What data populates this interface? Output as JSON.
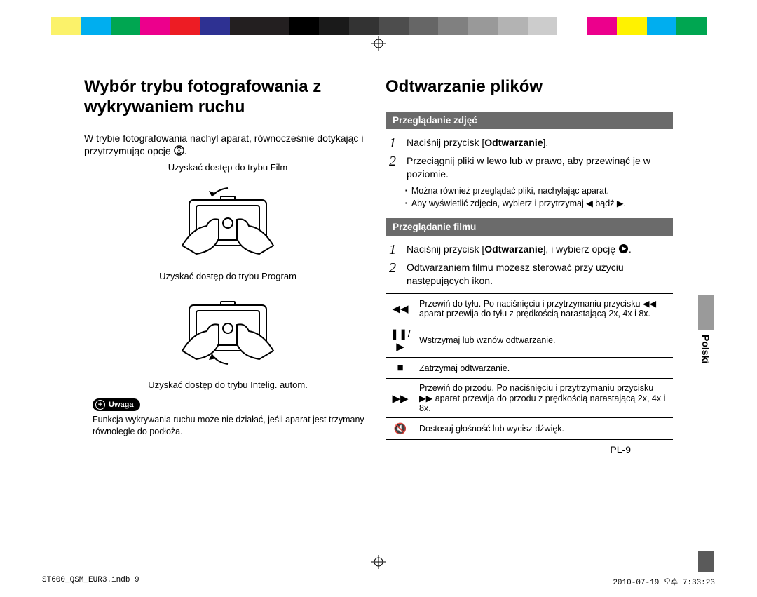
{
  "colorBar": [
    "#ffffff",
    "#fbf26a",
    "#00aeef",
    "#00a651",
    "#ec008c",
    "#ed1c24",
    "#2e3192",
    "#231f20",
    "#231f20",
    "#000000",
    "#1a1a1a",
    "#333333",
    "#4d4d4d",
    "#666666",
    "#808080",
    "#999999",
    "#b3b3b3",
    "#cccccc",
    "#ffffff",
    "#ec008c",
    "#fff200",
    "#00aeef",
    "#00a651",
    "#ffffff"
  ],
  "left": {
    "heading": "Wybór trybu fotografowania z wykrywaniem ruchu",
    "intro_a": "W trybie fotografowania nachyl aparat, równocześnie dotykając i przytrzymując opcję ",
    "intro_b": ".",
    "cap1": "Uzyskać dostęp do trybu Film",
    "cap2": "Uzyskać dostęp do trybu Program",
    "cap3": "Uzyskać dostęp do trybu Intelig. autom.",
    "noteLabel": "Uwaga",
    "noteText": "Funkcja wykrywania ruchu może nie działać, jeśli aparat jest trzymany równolegle do podłoża."
  },
  "right": {
    "heading": "Odtwarzanie plików",
    "sec1": "Przeglądanie zdjęć",
    "s1_1_a": "Naciśnij przycisk [",
    "s1_1_b": "Odtwarzanie",
    "s1_1_c": "].",
    "s1_2": "Przeciągnij pliki w lewo lub w prawo, aby przewinąć je w poziomie.",
    "b1": "Można również przeglądać pliki, nachylając aparat.",
    "b2": "Aby wyświetlić zdjęcia, wybierz i przytrzymaj ◀ bądź ▶.",
    "sec2": "Przeglądanie filmu",
    "s2_1_a": "Naciśnij przycisk [",
    "s2_1_b": "Odtwarzanie",
    "s2_1_c": "], i wybierz opcję ",
    "s2_1_d": ".",
    "s2_2": "Odtwarzaniem filmu możesz sterować przy użyciu następujących ikon.",
    "rows": [
      {
        "icon": "◀◀",
        "text": "Przewiń do tyłu. Po naciśnięciu i przytrzymaniu przycisku ◀◀ aparat przewija do tyłu z prędkością narastającą 2x, 4x i 8x."
      },
      {
        "icon": "❚❚/▶",
        "text": "Wstrzymaj lub wznów odtwarzanie."
      },
      {
        "icon": "■",
        "text": "Zatrzymaj odtwarzanie."
      },
      {
        "icon": "▶▶",
        "text": "Przewiń do przodu. Po naciśnięciu i przytrzymaniu przycisku ▶▶ aparat przewija do przodu z prędkością narastającą 2x, 4x i 8x."
      },
      {
        "icon": "🔇",
        "text": "Dostosuj głośność lub wycisz dźwięk."
      }
    ]
  },
  "sideLabel": "Polski",
  "pageNum": "PL-9",
  "footerLeft": "ST600_QSM_EUR3.indb   9",
  "footerRight": "2010-07-19   오후 7:33:23"
}
